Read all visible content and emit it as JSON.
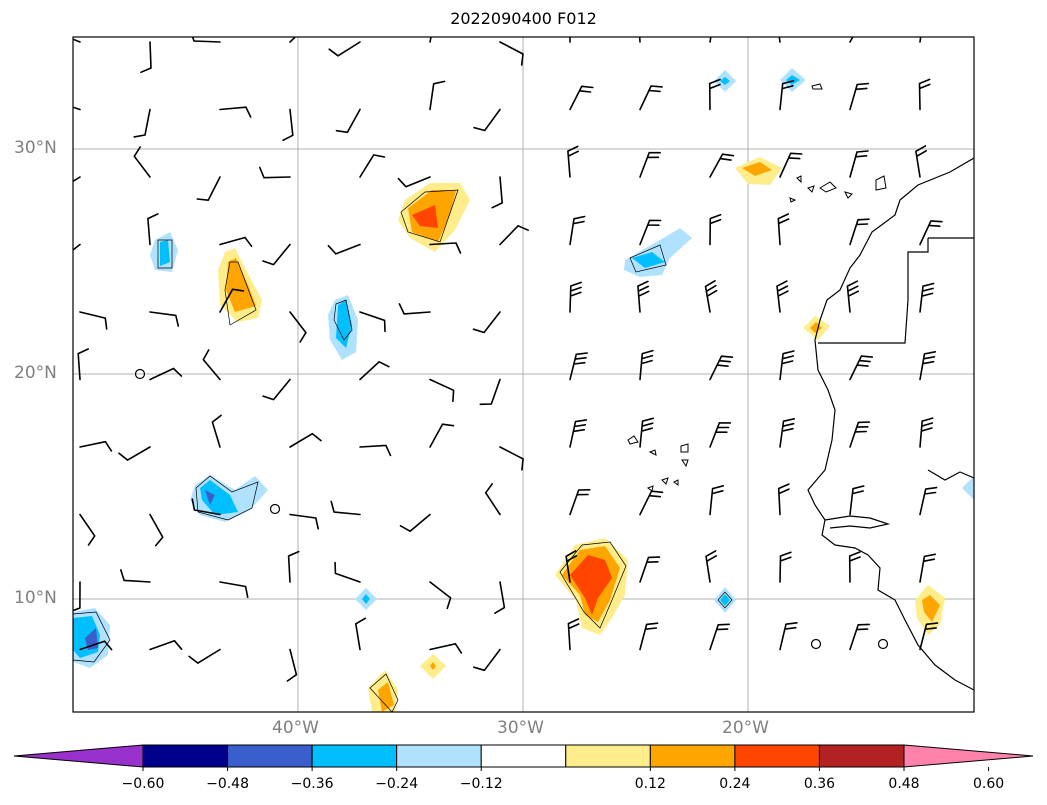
{
  "title": "2022090400 F012",
  "map": {
    "lat_labels": [
      "30°N",
      "20°N",
      "10°N"
    ],
    "lon_labels": [
      "40°W",
      "30°W",
      "20°W"
    ],
    "extent_note": "",
    "gridline_color": "#b0b0b0"
  },
  "colorbar": {
    "colors": [
      "#9932cc",
      "#00008b",
      "#3a5fcd",
      "#00bfff",
      "#b0e2ff",
      "#ffffff",
      "#ffec8b",
      "#ffa500",
      "#ff4500",
      "#b22222",
      "#ff82ab"
    ],
    "tick_labels": [
      "−0.60",
      "−0.48",
      "−0.36",
      "−0.24",
      "−0.12",
      "0.12",
      "0.24",
      "0.36",
      "0.48",
      "0.60"
    ]
  },
  "chart_data": {
    "type": "heatmap",
    "title": "2022090400 F012",
    "xlabel": "",
    "ylabel": "",
    "xlim": [
      -50,
      -10
    ],
    "ylim": [
      5,
      35
    ],
    "levels": [
      -0.6,
      -0.48,
      -0.36,
      -0.24,
      -0.12,
      0.12,
      0.24,
      0.36,
      0.48,
      0.6
    ],
    "features": [
      {
        "lon": -34.5,
        "lat": 27.0,
        "peak": 0.48
      },
      {
        "lon": -43.5,
        "lat": 23.8,
        "peak": 0.36
      },
      {
        "lon": -45.5,
        "lat": 25.3,
        "peak": -0.36
      },
      {
        "lon": -38.0,
        "lat": 21.8,
        "peak": -0.36
      },
      {
        "lon": -42.0,
        "lat": 14.5,
        "peak": -0.36
      },
      {
        "lon": -49.3,
        "lat": 8.5,
        "peak": -0.48
      },
      {
        "lon": -37.3,
        "lat": 10.0,
        "peak": -0.24
      },
      {
        "lon": -35.8,
        "lat": 5.7,
        "peak": 0.36
      },
      {
        "lon": -33.8,
        "lat": 6.9,
        "peak": 0.24
      },
      {
        "lon": -27.0,
        "lat": 10.5,
        "peak": 0.48
      },
      {
        "lon": -23.2,
        "lat": 25.0,
        "peak": -0.36
      },
      {
        "lon": -20.7,
        "lat": 33.0,
        "peak": -0.24
      },
      {
        "lon": -18.2,
        "lat": 33.0,
        "peak": -0.24
      },
      {
        "lon": -19.5,
        "lat": 29.0,
        "peak": 0.36
      },
      {
        "lon": -16.5,
        "lat": 22.0,
        "peak": 0.36
      },
      {
        "lon": -21.0,
        "lat": 10.0,
        "peak": -0.24
      },
      {
        "lon": -11.8,
        "lat": 9.5,
        "peak": 0.36
      },
      {
        "lon": -10.0,
        "lat": 15.0,
        "peak": -0.24
      }
    ]
  }
}
